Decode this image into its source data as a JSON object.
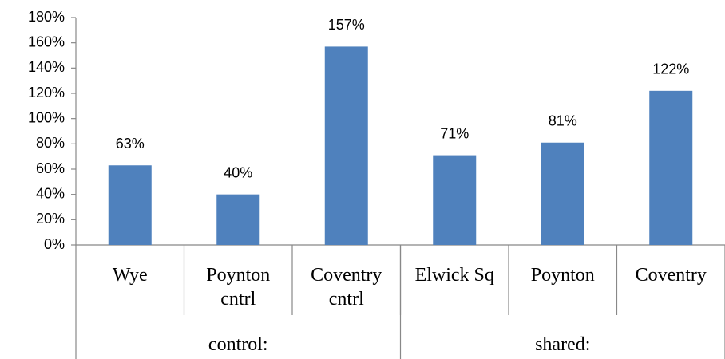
{
  "chart_data": {
    "type": "bar",
    "groups": [
      {
        "label": "control:",
        "categories": [
          "Wye",
          "Poynton cntrl",
          "Coventry cntrl"
        ]
      },
      {
        "label": "shared:",
        "categories": [
          "Elwick Sq",
          "Poynton",
          "Coventry"
        ]
      }
    ],
    "values": [
      63,
      40,
      157,
      71,
      81,
      122
    ],
    "value_labels": [
      "63%",
      "40%",
      "157%",
      "71%",
      "81%",
      "122%"
    ],
    "color": "#4f81bd",
    "ylim": [
      0,
      180
    ],
    "yticks": [
      {
        "value": 0,
        "label": "0%"
      },
      {
        "value": 20,
        "label": "20%"
      },
      {
        "value": 40,
        "label": "40%"
      },
      {
        "value": 60,
        "label": "60%"
      },
      {
        "value": 80,
        "label": "80%"
      },
      {
        "value": 100,
        "label": "100%"
      },
      {
        "value": 120,
        "label": "120%"
      },
      {
        "value": 140,
        "label": "140%"
      },
      {
        "value": 160,
        "label": "160%"
      },
      {
        "value": 180,
        "label": "180%"
      }
    ],
    "grid": false
  }
}
